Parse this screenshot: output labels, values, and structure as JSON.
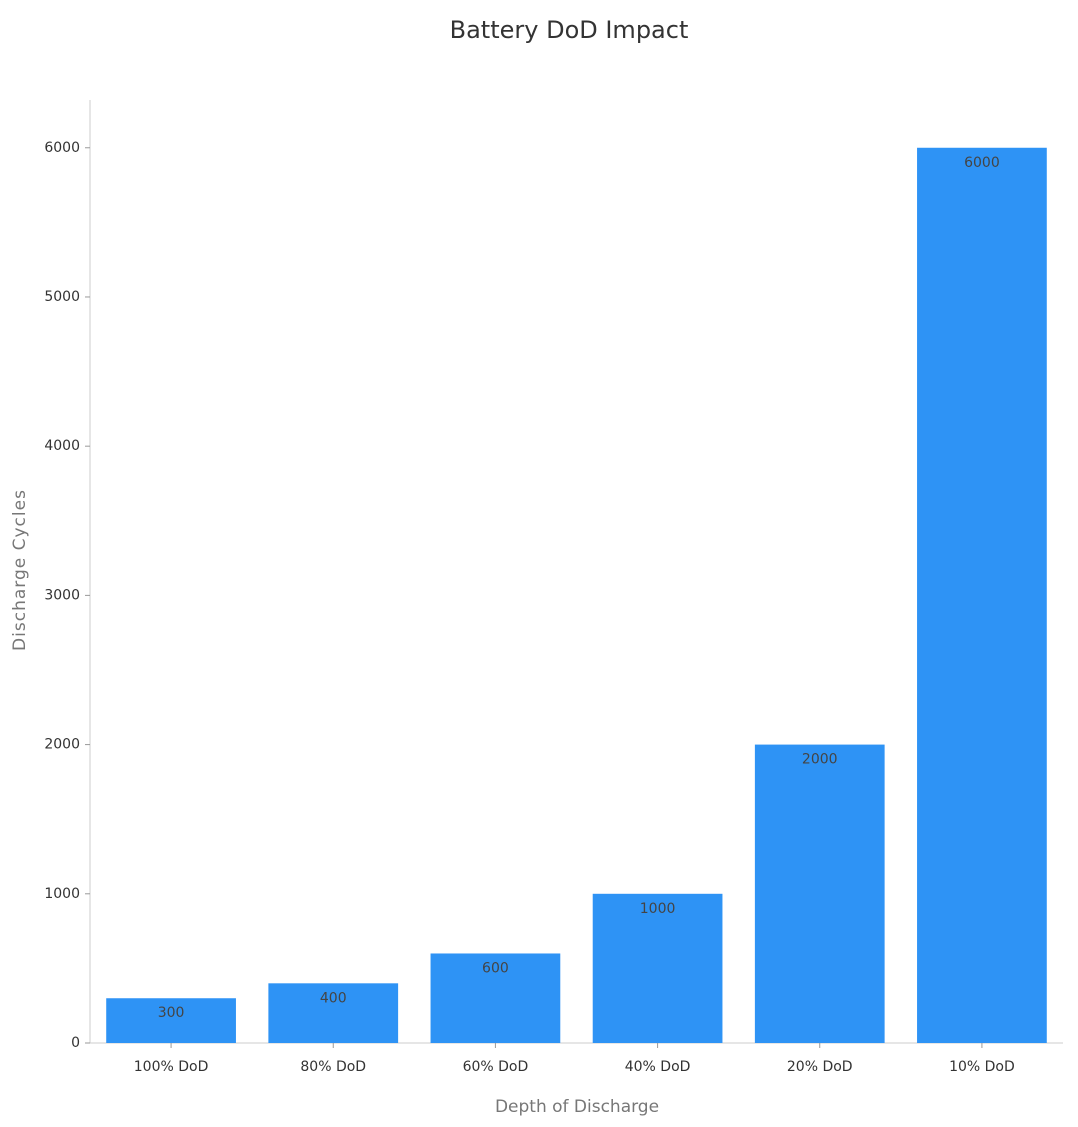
{
  "chart_data": {
    "type": "bar",
    "title": "Battery DoD Impact",
    "x_label": "Depth of Discharge",
    "y_label": "Discharge Cycles",
    "categories": [
      "100% DoD",
      "80% DoD",
      "60% DoD",
      "40% DoD",
      "20% DoD",
      "10% DoD"
    ],
    "values": [
      300,
      400,
      600,
      1000,
      2000,
      6000
    ],
    "color": "#2e93f5",
    "ylim": [
      0,
      6300
    ],
    "yticks": [
      0,
      1000,
      2000,
      3000,
      4000,
      5000,
      6000
    ],
    "grid": false
  }
}
